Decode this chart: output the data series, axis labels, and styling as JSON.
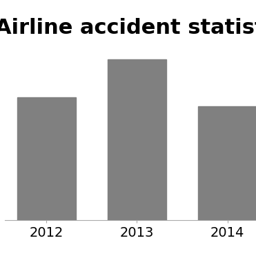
{
  "categories": [
    "2012",
    "2013",
    "2014"
  ],
  "values": [
    13,
    17,
    12
  ],
  "bar_color": "#808080",
  "title": "Airline accident statistics",
  "title_fontsize": 22,
  "title_fontweight": "bold",
  "ylim": [
    0,
    20
  ],
  "background_color": "#ffffff",
  "grid_color": "#d0d0d0",
  "bar_width": 0.65,
  "tick_fontsize": 14
}
